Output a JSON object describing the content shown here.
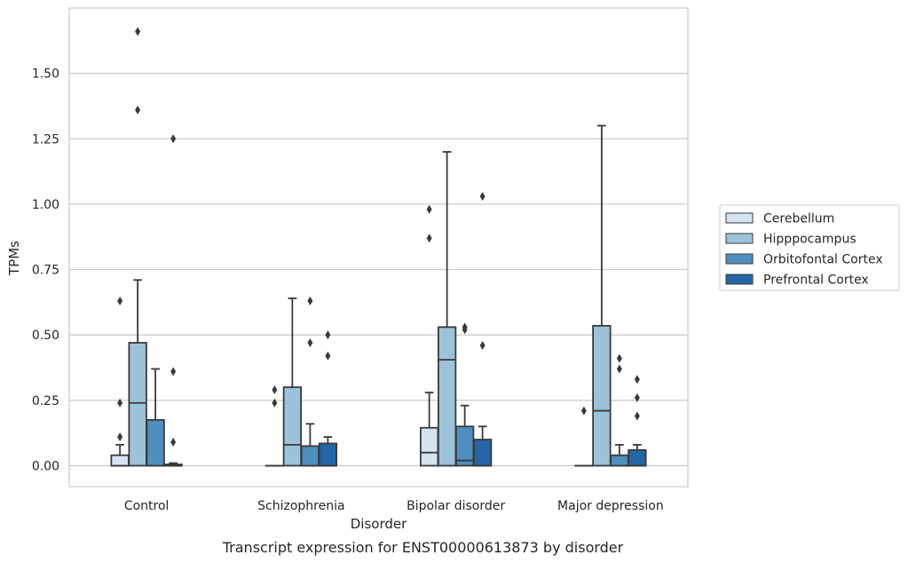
{
  "chart_data": {
    "type": "box",
    "title": "",
    "caption": "Transcript expression for ENST00000613873 by disorder",
    "xlabel": "Disorder",
    "ylabel": "TPMs",
    "ylim": [
      -0.08,
      1.75
    ],
    "yticks": [
      0.0,
      0.25,
      0.5,
      0.75,
      1.0,
      1.25,
      1.5
    ],
    "ytick_labels": [
      "0.00",
      "0.25",
      "0.50",
      "0.75",
      "1.00",
      "1.25",
      "1.50"
    ],
    "grid": "horizontal",
    "legend_position": "right",
    "categories": [
      "Control",
      "Schizophrenia",
      "Bipolar disorder",
      "Major depression"
    ],
    "series": [
      {
        "name": "Cerebellum",
        "color": "#d6e3f1",
        "boxes": [
          {
            "q1": 0.0,
            "median": 0.0,
            "q3": 0.04,
            "whisker_low": 0.0,
            "whisker_high": 0.08,
            "outliers": [
              0.11,
              0.24,
              0.63
            ]
          },
          {
            "q1": 0.0,
            "median": 0.0,
            "q3": 0.0,
            "whisker_low": 0.0,
            "whisker_high": 0.0,
            "outliers": [
              0.24,
              0.29
            ]
          },
          {
            "q1": 0.0,
            "median": 0.05,
            "q3": 0.145,
            "whisker_low": 0.0,
            "whisker_high": 0.28,
            "outliers": [
              0.87,
              0.98
            ]
          },
          {
            "q1": 0.0,
            "median": 0.0,
            "q3": 0.0,
            "whisker_low": 0.0,
            "whisker_high": 0.0,
            "outliers": [
              0.21
            ]
          }
        ]
      },
      {
        "name": "Hipppocampus",
        "color": "#9dc3db",
        "boxes": [
          {
            "q1": 0.0,
            "median": 0.24,
            "q3": 0.47,
            "whisker_low": 0.0,
            "whisker_high": 0.71,
            "outliers": [
              1.36,
              1.66
            ]
          },
          {
            "q1": 0.0,
            "median": 0.08,
            "q3": 0.3,
            "whisker_low": 0.0,
            "whisker_high": 0.64,
            "outliers": []
          },
          {
            "q1": 0.0,
            "median": 0.405,
            "q3": 0.53,
            "whisker_low": 0.0,
            "whisker_high": 1.2,
            "outliers": []
          },
          {
            "q1": 0.0,
            "median": 0.21,
            "q3": 0.535,
            "whisker_low": 0.0,
            "whisker_high": 1.3,
            "outliers": []
          }
        ]
      },
      {
        "name": "Orbitofontal Cortex",
        "color": "#4f8fbf",
        "boxes": [
          {
            "q1": 0.0,
            "median": 0.0,
            "q3": 0.175,
            "whisker_low": 0.0,
            "whisker_high": 0.37,
            "outliers": []
          },
          {
            "q1": 0.0,
            "median": 0.0,
            "q3": 0.075,
            "whisker_low": 0.0,
            "whisker_high": 0.16,
            "outliers": [
              0.47,
              0.63
            ]
          },
          {
            "q1": 0.0,
            "median": 0.02,
            "q3": 0.15,
            "whisker_low": 0.0,
            "whisker_high": 0.23,
            "outliers": [
              0.52,
              0.53
            ]
          },
          {
            "q1": 0.0,
            "median": 0.0,
            "q3": 0.04,
            "whisker_low": 0.0,
            "whisker_high": 0.08,
            "outliers": [
              0.37,
              0.41
            ]
          }
        ]
      },
      {
        "name": "Prefrontal Cortex",
        "color": "#2565a5",
        "boxes": [
          {
            "q1": 0.0,
            "median": 0.0,
            "q3": 0.005,
            "whisker_low": 0.0,
            "whisker_high": 0.01,
            "outliers": [
              0.09,
              0.36,
              1.25
            ]
          },
          {
            "q1": 0.0,
            "median": 0.0,
            "q3": 0.085,
            "whisker_low": 0.0,
            "whisker_high": 0.11,
            "outliers": [
              0.42,
              0.5
            ]
          },
          {
            "q1": 0.0,
            "median": 0.0,
            "q3": 0.1,
            "whisker_low": 0.0,
            "whisker_high": 0.15,
            "outliers": [
              0.46,
              1.03
            ]
          },
          {
            "q1": 0.0,
            "median": 0.0,
            "q3": 0.06,
            "whisker_low": 0.0,
            "whisker_high": 0.08,
            "outliers": [
              0.19,
              0.26,
              0.33
            ]
          }
        ]
      }
    ]
  }
}
